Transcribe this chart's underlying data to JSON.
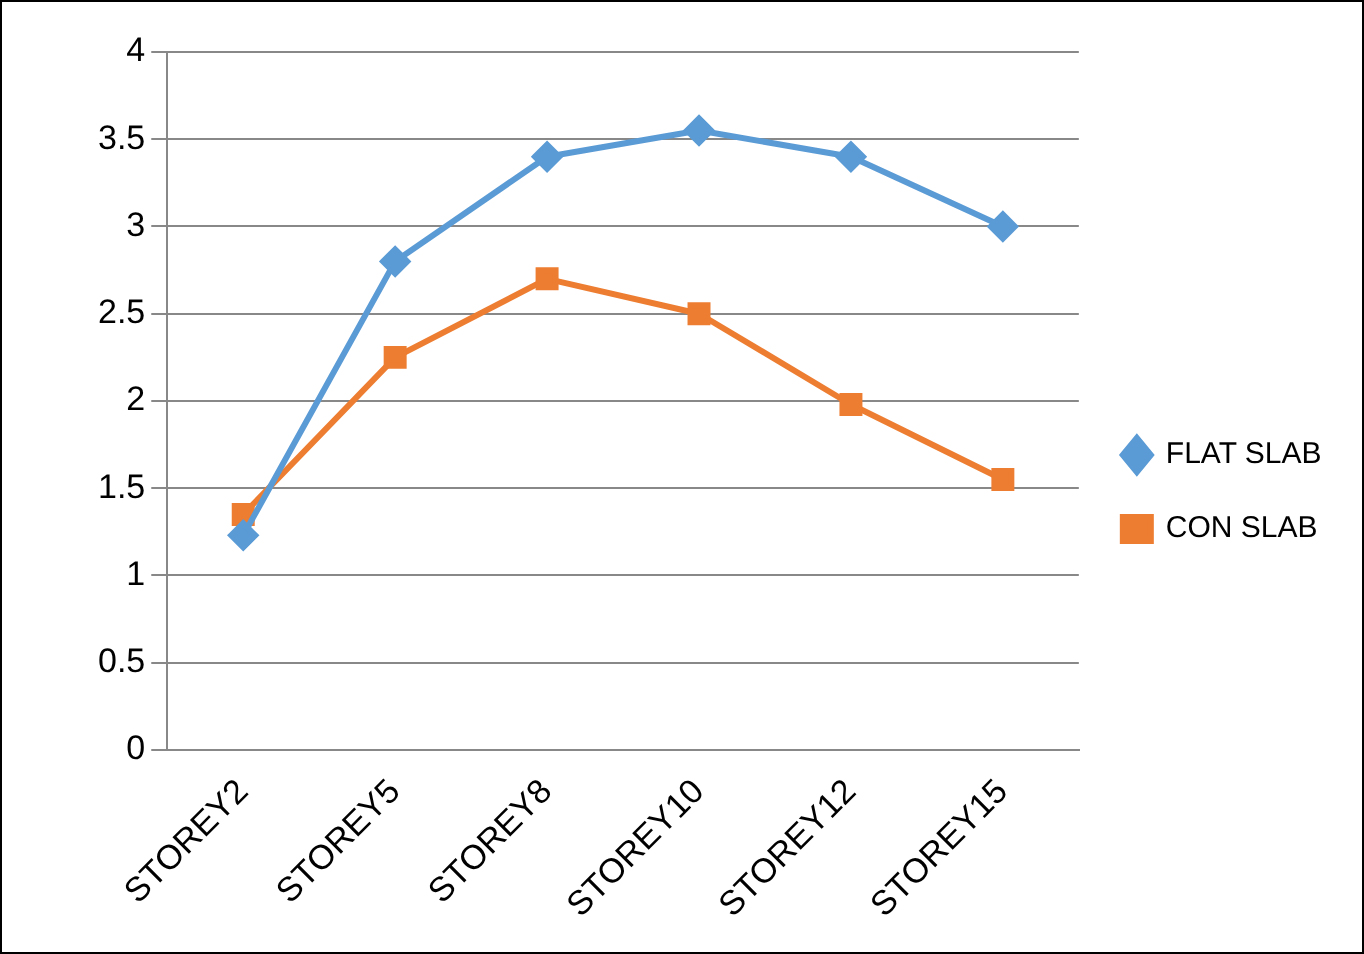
{
  "chart_data": {
    "type": "line",
    "categories": [
      "STOREY2",
      "STOREY5",
      "STOREY8",
      "STOREY10",
      "STOREY12",
      "STOREY15"
    ],
    "series": [
      {
        "name": "FLAT SLAB",
        "color": "#5b9bd5",
        "marker": "diamond",
        "values": [
          1.23,
          2.8,
          3.4,
          3.55,
          3.4,
          3.0
        ]
      },
      {
        "name": "CON SLAB",
        "color": "#ed7d31",
        "marker": "square",
        "values": [
          1.35,
          2.25,
          2.7,
          2.5,
          1.98,
          1.55
        ]
      }
    ],
    "ylim": [
      0,
      4
    ],
    "yticks": [
      0,
      0.5,
      1,
      1.5,
      2,
      2.5,
      3,
      3.5,
      4
    ],
    "grid": "y",
    "legend": "right",
    "line_style": "solid"
  }
}
